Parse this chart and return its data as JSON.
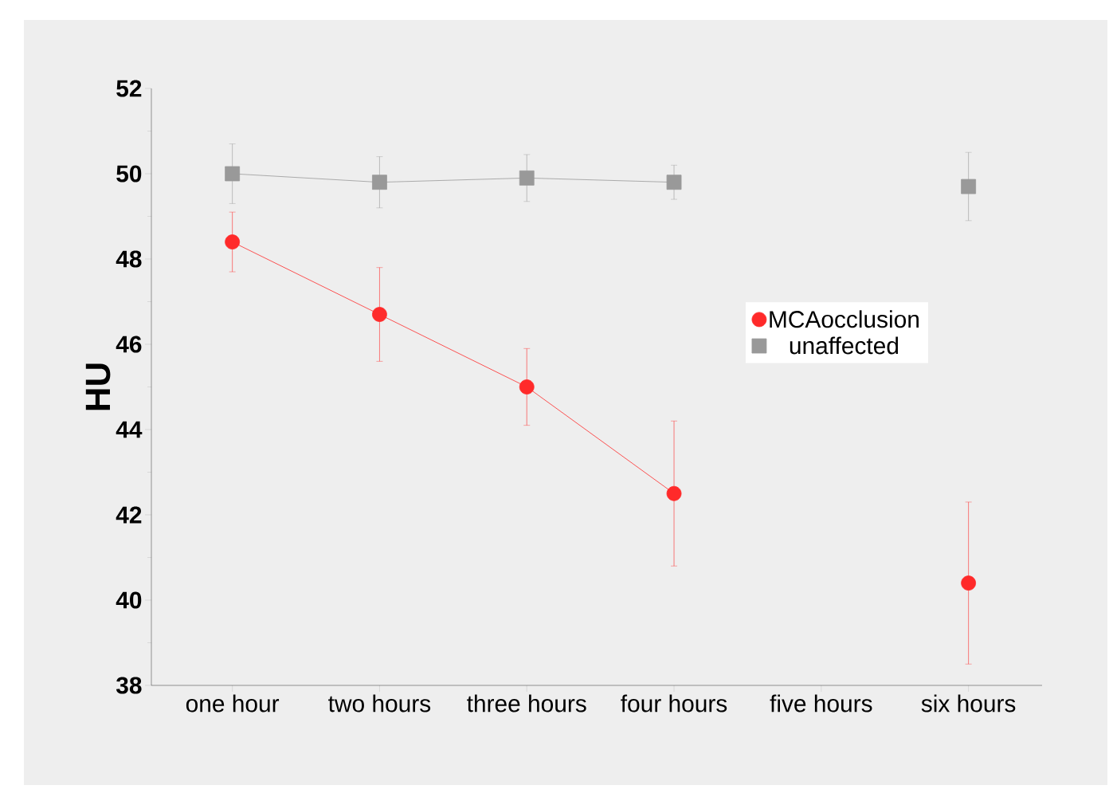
{
  "chart_data": {
    "type": "line",
    "ylabel": "HU",
    "categories": [
      "one hour",
      "two hours",
      "three hours",
      "four hours",
      "five hours",
      "six hours"
    ],
    "series": [
      {
        "name": "MCAocclusion",
        "color": "#ff2a2a",
        "marker": "circle",
        "values": [
          48.4,
          46.7,
          45.0,
          42.5,
          null,
          40.4
        ],
        "errors": [
          0.7,
          1.1,
          0.9,
          1.7,
          null,
          1.9
        ]
      },
      {
        "name": "unaffected",
        "color": "#999999",
        "marker": "square",
        "values": [
          50.0,
          49.8,
          49.9,
          49.8,
          null,
          49.7
        ],
        "errors": [
          0.7,
          0.6,
          0.55,
          0.4,
          null,
          0.8
        ]
      }
    ],
    "ylim": [
      38,
      52
    ],
    "yticks": [
      38,
      40,
      42,
      44,
      46,
      48,
      50,
      52
    ],
    "grid": false,
    "legend": "right"
  }
}
